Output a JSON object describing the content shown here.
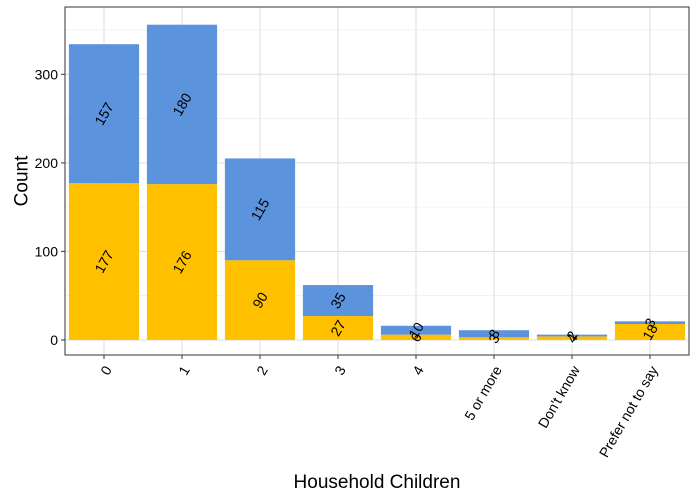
{
  "chart_data": {
    "type": "bar",
    "stacked": true,
    "xlabel": "Household Children",
    "ylabel": "Count",
    "categories": [
      "0",
      "1",
      "2",
      "3",
      "4",
      "5 or more",
      "Don't know",
      "Prefer not to say"
    ],
    "series": [
      {
        "values": [
          177,
          176,
          90,
          27,
          6,
          3,
          4,
          18
        ],
        "labels": [
          "177",
          "176",
          "90",
          "27",
          "6",
          "3",
          "4",
          "18"
        ],
        "color": "#FFC000"
      },
      {
        "values": [
          157,
          180,
          115,
          35,
          10,
          8,
          2,
          3
        ],
        "labels": [
          "157",
          "180",
          "115",
          "35",
          "10",
          "8",
          "2",
          "3"
        ],
        "color": "#5B93DC"
      }
    ],
    "ylim": [
      -17,
      376
    ],
    "yticks": [
      0,
      100,
      200,
      300
    ],
    "ytick_labels": [
      "0",
      "100",
      "200",
      "300"
    ],
    "grid": true,
    "legend": "none"
  }
}
